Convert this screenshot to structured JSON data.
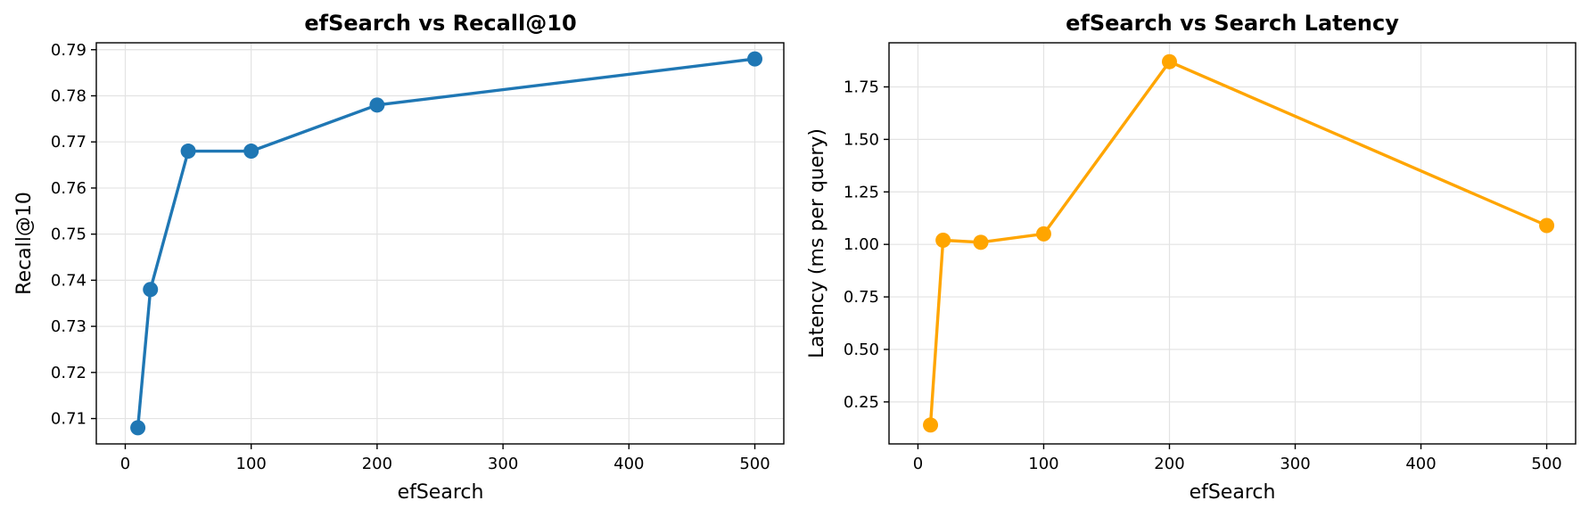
{
  "chart_data": [
    {
      "type": "line",
      "title": "efSearch vs Recall@10",
      "xlabel": "efSearch",
      "ylabel": "Recall@10",
      "xlim": [
        -23,
        523
      ],
      "ylim": [
        0.7045,
        0.7915
      ],
      "xticks": [
        0,
        100,
        200,
        300,
        400,
        500
      ],
      "yticks": [
        0.71,
        0.72,
        0.73,
        0.74,
        0.75,
        0.76,
        0.77,
        0.78,
        0.79
      ],
      "grid": true,
      "color": "#1f77b4",
      "series": [
        {
          "x": [
            10,
            20,
            50,
            100,
            200,
            500
          ],
          "y": [
            0.708,
            0.738,
            0.768,
            0.768,
            0.778,
            0.788
          ]
        }
      ]
    },
    {
      "type": "line",
      "title": "efSearch vs Search Latency",
      "xlabel": "efSearch",
      "ylabel": "Latency (ms per query)",
      "xlim": [
        -23,
        523
      ],
      "ylim": [
        0.05,
        1.96
      ],
      "xticks": [
        0,
        100,
        200,
        300,
        400,
        500
      ],
      "yticks": [
        0.25,
        0.5,
        0.75,
        1.0,
        1.25,
        1.5,
        1.75
      ],
      "ytick_labels": [
        "0.25",
        "0.50",
        "0.75",
        "1.00",
        "1.25",
        "1.50",
        "1.75"
      ],
      "grid": true,
      "color": "#ffa500",
      "series": [
        {
          "x": [
            10,
            20,
            50,
            100,
            200,
            500
          ],
          "y": [
            0.14,
            1.02,
            1.01,
            1.05,
            1.87,
            1.09
          ]
        }
      ]
    }
  ]
}
